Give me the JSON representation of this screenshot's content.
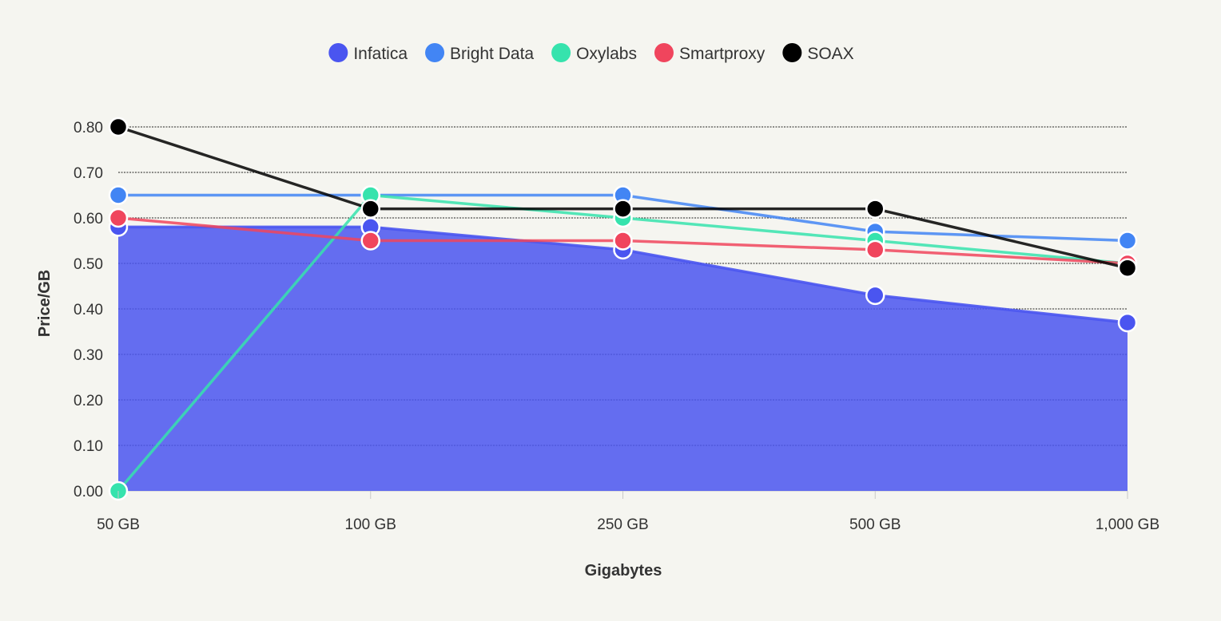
{
  "chart_data": {
    "type": "line",
    "categories": [
      "50 GB",
      "100 GB",
      "250 GB",
      "500 GB",
      "1,000 GB"
    ],
    "xlabel": "Gigabytes",
    "ylabel": "Price/GB",
    "ylim": [
      0,
      0.8
    ],
    "yticks": [
      "0.00",
      "0.10",
      "0.20",
      "0.30",
      "0.40",
      "0.50",
      "0.60",
      "0.70",
      "0.80"
    ],
    "grid": true,
    "legend_position": "top-center",
    "series": [
      {
        "name": "Infatica",
        "color": "#4a55f0",
        "style": "area",
        "values": [
          0.58,
          0.58,
          0.53,
          0.43,
          0.37
        ]
      },
      {
        "name": "Bright Data",
        "color": "#4285f4",
        "style": "line",
        "values": [
          0.65,
          0.65,
          0.65,
          0.57,
          0.55
        ]
      },
      {
        "name": "Oxylabs",
        "color": "#36e3ad",
        "style": "line",
        "values": [
          0.0,
          0.65,
          0.6,
          0.55,
          0.5
        ]
      },
      {
        "name": "Smartproxy",
        "color": "#f0455d",
        "style": "line",
        "values": [
          0.6,
          0.55,
          0.55,
          0.53,
          0.5
        ]
      },
      {
        "name": "SOAX",
        "color": "#000000",
        "style": "line",
        "values": [
          0.8,
          0.62,
          0.62,
          0.62,
          0.49
        ]
      }
    ]
  }
}
